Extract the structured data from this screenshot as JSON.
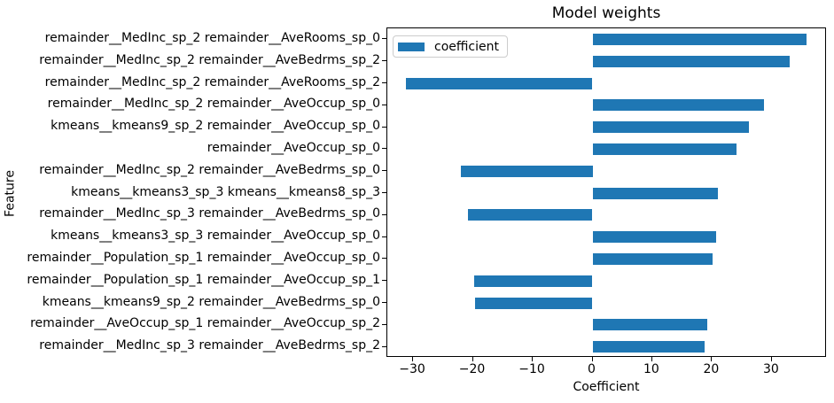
{
  "chart_data": {
    "type": "bar",
    "orientation": "horizontal",
    "title": "Model weights",
    "xlabel": "Coefficient",
    "ylabel": "Feature",
    "legend": [
      "coefficient"
    ],
    "legend_position": "upper left",
    "bar_color": "#1f77b4",
    "categories": [
      "remainder__MedInc_sp_2 remainder__AveRooms_sp_0",
      "remainder__MedInc_sp_2 remainder__AveBedrms_sp_2",
      "remainder__MedInc_sp_2 remainder__AveRooms_sp_2",
      "remainder__MedInc_sp_2 remainder__AveOccup_sp_0",
      "kmeans__kmeans9_sp_2 remainder__AveOccup_sp_0",
      "remainder__AveOccup_sp_0",
      "remainder__MedInc_sp_2 remainder__AveBedrms_sp_0",
      "kmeans__kmeans3_sp_3 kmeans__kmeans8_sp_3",
      "remainder__MedInc_sp_3 remainder__AveBedrms_sp_0",
      "kmeans__kmeans3_sp_3 remainder__AveOccup_sp_0",
      "remainder__Population_sp_1 remainder__AveOccup_sp_0",
      "remainder__Population_sp_1 remainder__AveOccup_sp_1",
      "kmeans__kmeans9_sp_2 remainder__AveBedrms_sp_0",
      "remainder__AveOccup_sp_1 remainder__AveOccup_sp_2",
      "remainder__MedInc_sp_3 remainder__AveBedrms_sp_2"
    ],
    "values": [
      35.8,
      33.0,
      -31.2,
      28.7,
      26.2,
      24.1,
      -22.0,
      21.0,
      -20.8,
      20.7,
      20.1,
      -19.8,
      -19.6,
      19.2,
      18.8
    ],
    "xlim": [
      -34.3,
      39.2
    ],
    "xticks": [
      -30,
      -20,
      -10,
      0,
      10,
      20,
      30
    ],
    "grid": false
  }
}
